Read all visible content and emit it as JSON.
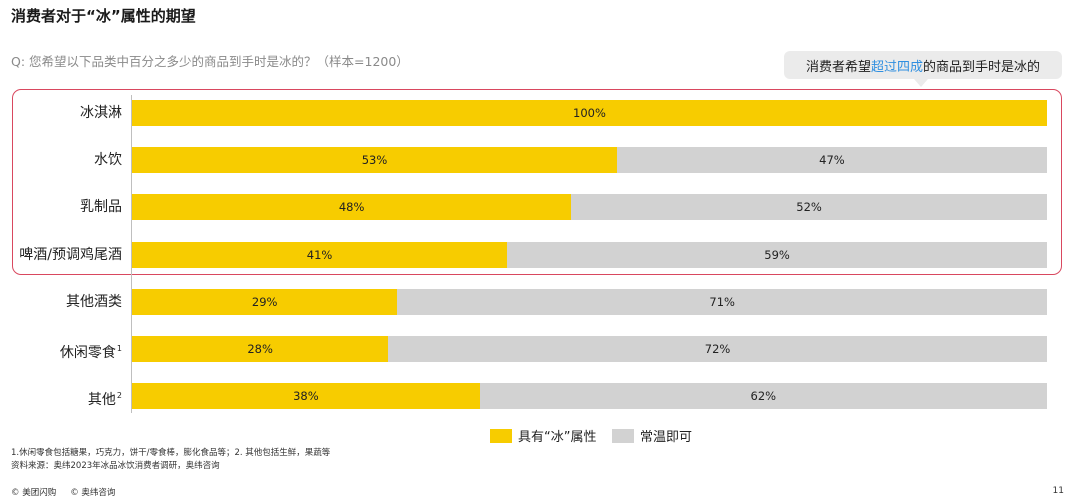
{
  "title": "消费者对于“冰”属性的期望",
  "question": "Q: 您希望以下品类中百分之多少的商品到手时是冰的？（样本=1200）",
  "callout": {
    "pre": "消费者希望",
    "highlight": "超过四成",
    "post": "的商品到手时是冰的"
  },
  "colors": {
    "ice": "#f7cc00",
    "normal": "#d2d2d2",
    "highlight_box": "#d9485f",
    "callout_highlight": "#2f8fe0"
  },
  "chart_data": {
    "type": "bar",
    "orientation": "horizontal",
    "stacked": true,
    "percent_stacked": true,
    "categories": [
      "冰淇淋",
      "水饮",
      "乳制品",
      "啤酒/预调鸡尾酒",
      "其他酒类",
      "休闲零食",
      "其他"
    ],
    "category_superscripts": [
      "",
      "",
      "",
      "",
      "",
      "1",
      "2"
    ],
    "series": [
      {
        "name": "具有“冰”属性",
        "values": [
          100,
          53,
          48,
          41,
          29,
          28,
          38
        ]
      },
      {
        "name": "常温即可",
        "values": [
          0,
          47,
          52,
          59,
          71,
          72,
          62
        ]
      }
    ],
    "data_labels": [
      [
        "100%",
        "53%",
        "48%",
        "41%",
        "29%",
        "28%",
        "38%"
      ],
      [
        "",
        "47%",
        "52%",
        "59%",
        "71%",
        "72%",
        "62%"
      ]
    ],
    "xlim": [
      0,
      100
    ],
    "legend_position": "bottom-right",
    "highlighted_categories": [
      "冰淇淋",
      "水饮",
      "乳制品",
      "啤酒/预调鸡尾酒"
    ]
  },
  "footnotes": [
    "1.休闲零食包括糖果，巧克力，饼干/零食棒，膨化食品等；2. 其他包括生鲜，果蔬等",
    "资料来源：奥纬2023年冰品冰饮消费者调研，奥纬咨询"
  ],
  "footer": {
    "brand1": "© 美团闪购",
    "brand2": "© 奥纬咨询",
    "page": "11"
  }
}
